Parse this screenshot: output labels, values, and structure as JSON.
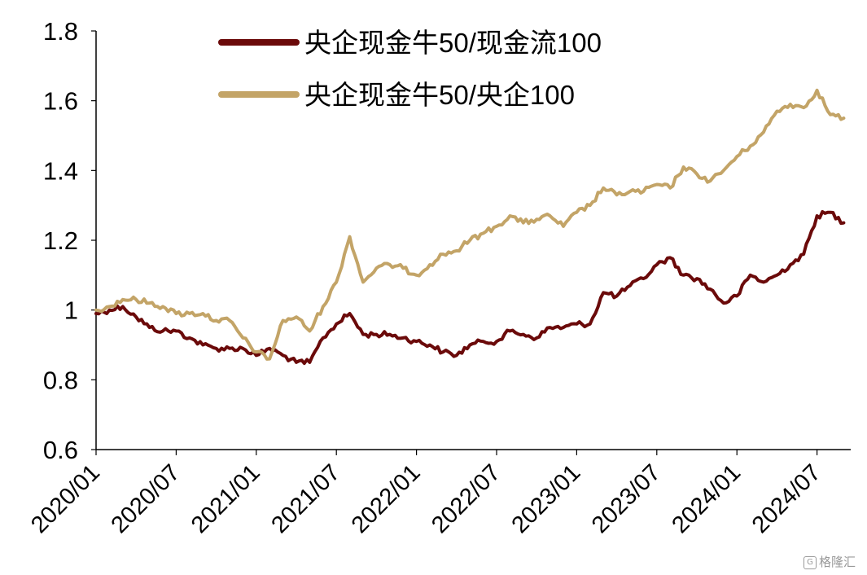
{
  "chart_data": {
    "type": "line",
    "x_ticks": [
      "2020/01",
      "2020/07",
      "2021/01",
      "2021/07",
      "2022/01",
      "2022/07",
      "2023/01",
      "2023/07",
      "2024/01",
      "2024/07"
    ],
    "y_ticks": [
      "0.6",
      "0.8",
      "1",
      "1.2",
      "1.4",
      "1.6",
      "1.8"
    ],
    "ylim": [
      0.6,
      1.8
    ],
    "xlim": [
      "2020-01",
      "2024-09-18"
    ],
    "grid": false,
    "legend_position": "top-left",
    "series": [
      {
        "name": "央企现金牛50/现金流100",
        "color": "#6b0a0a",
        "x": [
          "2020-01",
          "2020-02",
          "2020-03",
          "2020-04",
          "2020-05",
          "2020-06",
          "2020-07",
          "2020-08",
          "2020-09",
          "2020-10",
          "2020-11",
          "2020-12",
          "2021-01",
          "2021-02",
          "2021-03",
          "2021-04",
          "2021-05",
          "2021-06",
          "2021-07",
          "2021-08",
          "2021-09",
          "2021-10",
          "2021-11",
          "2021-12",
          "2022-01",
          "2022-02",
          "2022-03",
          "2022-04",
          "2022-05",
          "2022-06",
          "2022-07",
          "2022-08",
          "2022-09",
          "2022-10",
          "2022-11",
          "2022-12",
          "2023-01",
          "2023-02",
          "2023-03",
          "2023-04",
          "2023-05",
          "2023-06",
          "2023-07",
          "2023-08",
          "2023-09",
          "2023-10",
          "2023-11",
          "2023-12",
          "2024-01",
          "2024-02",
          "2024-03",
          "2024-04",
          "2024-05",
          "2024-06",
          "2024-07",
          "2024-08",
          "2024-09"
        ],
        "values": [
          0.99,
          1.0,
          1.01,
          0.98,
          0.95,
          0.94,
          0.94,
          0.92,
          0.9,
          0.89,
          0.89,
          0.89,
          0.87,
          0.89,
          0.87,
          0.85,
          0.85,
          0.92,
          0.96,
          0.99,
          0.93,
          0.93,
          0.93,
          0.92,
          0.91,
          0.9,
          0.88,
          0.87,
          0.9,
          0.91,
          0.91,
          0.94,
          0.93,
          0.92,
          0.95,
          0.95,
          0.96,
          0.96,
          1.05,
          1.04,
          1.07,
          1.09,
          1.13,
          1.15,
          1.1,
          1.09,
          1.06,
          1.02,
          1.04,
          1.1,
          1.08,
          1.1,
          1.13,
          1.16,
          1.27,
          1.28,
          1.25
        ]
      },
      {
        "name": "央企现金牛50/央企100",
        "color": "#c3a467",
        "x": [
          "2020-01",
          "2020-02",
          "2020-03",
          "2020-04",
          "2020-05",
          "2020-06",
          "2020-07",
          "2020-08",
          "2020-09",
          "2020-10",
          "2020-11",
          "2020-12",
          "2021-01",
          "2021-02",
          "2021-03",
          "2021-04",
          "2021-05",
          "2021-06",
          "2021-07",
          "2021-08",
          "2021-09",
          "2021-10",
          "2021-11",
          "2021-12",
          "2022-01",
          "2022-02",
          "2022-03",
          "2022-04",
          "2022-05",
          "2022-06",
          "2022-07",
          "2022-08",
          "2022-09",
          "2022-10",
          "2022-11",
          "2022-12",
          "2023-01",
          "2023-02",
          "2023-03",
          "2023-04",
          "2023-05",
          "2023-06",
          "2023-07",
          "2023-08",
          "2023-09",
          "2023-10",
          "2023-11",
          "2023-12",
          "2024-01",
          "2024-02",
          "2024-03",
          "2024-04",
          "2024-05",
          "2024-06",
          "2024-07",
          "2024-08",
          "2024-09"
        ],
        "values": [
          1.0,
          1.01,
          1.03,
          1.03,
          1.02,
          1.01,
          0.99,
          0.99,
          0.99,
          0.97,
          0.97,
          0.92,
          0.88,
          0.86,
          0.97,
          0.98,
          0.94,
          1.01,
          1.08,
          1.21,
          1.08,
          1.12,
          1.13,
          1.12,
          1.1,
          1.13,
          1.16,
          1.17,
          1.2,
          1.22,
          1.24,
          1.27,
          1.25,
          1.26,
          1.27,
          1.24,
          1.28,
          1.3,
          1.35,
          1.33,
          1.34,
          1.34,
          1.36,
          1.35,
          1.41,
          1.39,
          1.37,
          1.4,
          1.44,
          1.47,
          1.51,
          1.57,
          1.59,
          1.58,
          1.63,
          1.56,
          1.55
        ]
      }
    ]
  },
  "watermark": {
    "text": "格隆汇",
    "icon": "g-logo-icon"
  }
}
